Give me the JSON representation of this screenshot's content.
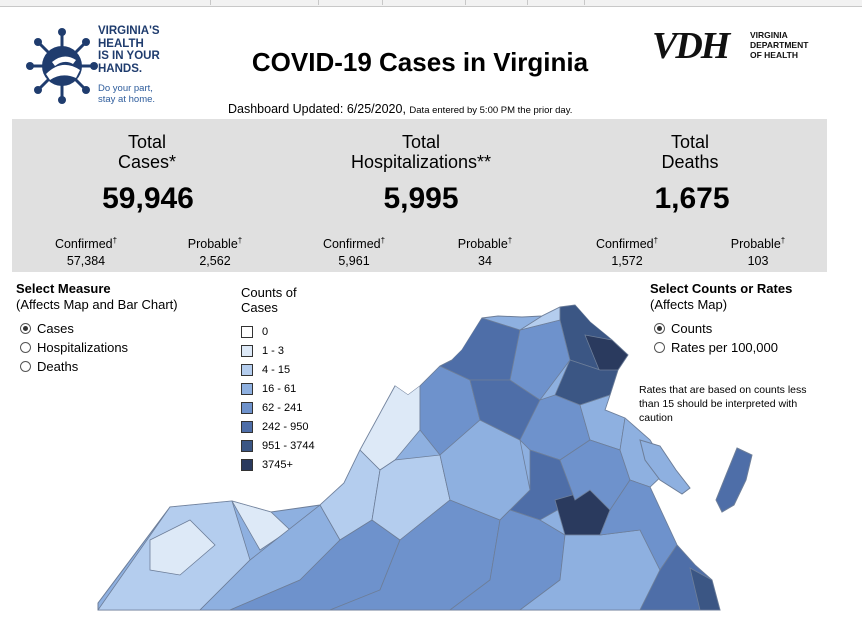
{
  "header": {
    "logo": {
      "lines": [
        "VIRGINIA'S",
        "HEALTH",
        "IS IN YOUR",
        "HANDS."
      ],
      "tagline_lines": [
        "Do your part,",
        "stay at home."
      ]
    },
    "title": "COVID-19 Cases in Virginia",
    "vdh": {
      "letters": "VDH",
      "lines": [
        "VIRGINIA",
        "DEPARTMENT",
        "OF HEALTH"
      ]
    },
    "updated": "Dashboard Updated: 6/25/2020,",
    "updated_note": "Data entered by 5:00 PM the prior day."
  },
  "kpis": [
    {
      "line1": "Total",
      "line2": "Cases*",
      "value": "59,946",
      "confirmed_label": "Confirmed",
      "confirmed": "57,384",
      "probable_label": "Probable",
      "probable": "2,562"
    },
    {
      "line1": "Total",
      "line2": "Hospitalizations**",
      "value": "5,995",
      "confirmed_label": "Confirmed",
      "confirmed": "5,961",
      "probable_label": "Probable",
      "probable": "34"
    },
    {
      "line1": "Total",
      "line2": "Deaths",
      "value": "1,675",
      "confirmed_label": "Confirmed",
      "confirmed": "1,572",
      "probable_label": "Probable",
      "probable": "103"
    }
  ],
  "dagger": "†",
  "measure": {
    "title": "Select Measure",
    "subtitle": "(Affects Map and Bar Chart)",
    "options": [
      {
        "label": "Cases",
        "selected": true
      },
      {
        "label": "Hospitalizations",
        "selected": false
      },
      {
        "label": "Deaths",
        "selected": false
      }
    ]
  },
  "legend": {
    "title_line1": "Counts of",
    "title_line2": "Cases",
    "items": [
      {
        "label": "0",
        "color": "#ffffff"
      },
      {
        "label": "1 - 3",
        "color": "#dde9f7"
      },
      {
        "label": "4 - 15",
        "color": "#b4cdee"
      },
      {
        "label": "16 - 61",
        "color": "#8eb0e0"
      },
      {
        "label": "62 - 241",
        "color": "#6e92cc"
      },
      {
        "label": "242 - 950",
        "color": "#4e6ea8"
      },
      {
        "label": "951 - 3744",
        "color": "#3b5684"
      },
      {
        "label": "3745+",
        "color": "#2a3a5e"
      }
    ]
  },
  "counts_rates": {
    "title": "Select Counts or Rates",
    "subtitle": "(Affects Map)",
    "options": [
      {
        "label": "Counts",
        "selected": true
      },
      {
        "label": "Rates per 100,000",
        "selected": false
      }
    ]
  },
  "note": "Rates that are based on counts less than 15 should be interpreted with caution",
  "colors": {
    "panel_bg": "#e0e0e0",
    "logo_blue": "#1f3c6e",
    "map_border": "#6d7e99"
  }
}
